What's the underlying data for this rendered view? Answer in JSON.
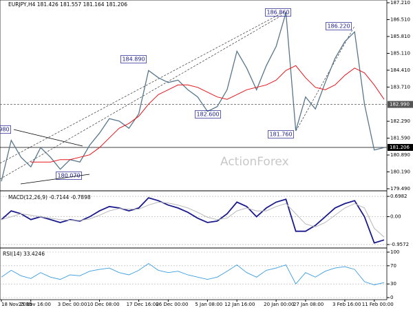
{
  "chart_data": {
    "type": "line",
    "title": "EURJPY,H4 181.426 181.557 181.164 181.206",
    "watermark": "ActionForex",
    "categories": [
      "18 Nov 2025",
      null,
      null,
      "25 Nov 16:00",
      null,
      null,
      null,
      "3 Dec 00:00",
      null,
      null,
      "10 Dec 08:00",
      null,
      null,
      null,
      "17 Dec 16:00",
      null,
      null,
      "26 Dec 00:00",
      null,
      null,
      null,
      "5 Jan 08:00",
      null,
      null,
      "12 Jan 16:00",
      null,
      null,
      null,
      "20 Jan 00:00",
      null,
      null,
      "27 Jan 08:00",
      null,
      null,
      null,
      "3 Feb 16:00",
      null,
      null,
      "11 Feb 00:00",
      null
    ],
    "series": [
      {
        "name": "EURJPY",
        "color": "#56768c",
        "values": [
          179.8,
          181.5,
          180.8,
          180.4,
          181.2,
          180.8,
          180.3,
          180.7,
          180.6,
          181.3,
          181.8,
          182.4,
          182.3,
          182.0,
          182.6,
          184.4,
          184.1,
          183.9,
          184.0,
          183.6,
          183.3,
          182.7,
          182.9,
          183.6,
          185.2,
          184.5,
          183.6,
          184.6,
          185.4,
          186.8,
          181.9,
          183.3,
          182.8,
          183.9,
          184.9,
          185.6,
          186.0,
          183.0,
          181.1,
          181.2
        ]
      },
      {
        "name": "MA",
        "color": "#e8141a",
        "values": [
          null,
          null,
          null,
          180.6,
          180.6,
          180.6,
          180.7,
          180.7,
          180.8,
          180.9,
          181.2,
          181.6,
          182.0,
          182.2,
          182.5,
          183.0,
          183.4,
          183.6,
          183.8,
          183.8,
          183.7,
          183.5,
          183.3,
          183.2,
          183.4,
          183.6,
          183.7,
          183.8,
          184.0,
          184.4,
          184.6,
          184.1,
          183.7,
          183.6,
          183.8,
          184.2,
          184.5,
          184.3,
          183.8,
          183.2
        ]
      }
    ],
    "ylim": [
      179.49,
      187.21
    ],
    "yticks": [
      {
        "value": 187.21,
        "label": "187.210"
      },
      {
        "value": 186.51,
        "label": "186.510"
      },
      {
        "value": 185.81,
        "label": "185.810"
      },
      {
        "value": 185.11,
        "label": "185.110"
      },
      {
        "value": 184.41,
        "label": "184.410"
      },
      {
        "value": 183.71,
        "label": "183.710"
      },
      {
        "value": 182.29,
        "label": "182.290"
      },
      {
        "value": 181.59,
        "label": "181.590"
      },
      {
        "value": 180.89,
        "label": "180.890"
      },
      {
        "value": 180.19,
        "label": "180.190"
      },
      {
        "value": 179.49,
        "label": "179.490"
      }
    ],
    "levels": [
      {
        "value": 182.99,
        "label": "182.990",
        "color": "#555555"
      },
      {
        "value": 181.206,
        "label": "181.206",
        "color": "#000000"
      }
    ],
    "annotations": [
      "186.860",
      "186.220",
      "184.890",
      "182.600",
      "181.760",
      "180.070",
      "980"
    ],
    "macd": {
      "title": "MACD(12,26,9) -0.7144 -0.7898",
      "ylim": [
        -1.076,
        0.818
      ],
      "yticks": [
        0.6982,
        {
          "value": 0,
          "label": "0.00"
        },
        -0.9572
      ],
      "series": [
        {
          "name": "MACD",
          "color": "#1a1a8c",
          "values": [
            -0.1,
            0.2,
            0.1,
            -0.1,
            0.0,
            -0.1,
            -0.2,
            -0.1,
            -0.15,
            0.0,
            0.2,
            0.35,
            0.3,
            0.2,
            0.3,
            0.65,
            0.55,
            0.4,
            0.3,
            0.15,
            -0.05,
            -0.2,
            -0.15,
            0.1,
            0.5,
            0.35,
            0.0,
            0.3,
            0.5,
            0.6,
            -0.5,
            -0.5,
            -0.3,
            0.0,
            0.3,
            0.45,
            0.55,
            0.0,
            -0.9,
            -0.8
          ]
        },
        {
          "name": "Signal",
          "color": "#b8b8b8",
          "values": [
            -0.1,
            0.0,
            0.1,
            0.05,
            0.0,
            -0.05,
            -0.1,
            -0.12,
            -0.13,
            -0.08,
            0.05,
            0.2,
            0.28,
            0.26,
            0.26,
            0.4,
            0.5,
            0.47,
            0.4,
            0.3,
            0.15,
            -0.02,
            -0.1,
            -0.05,
            0.2,
            0.3,
            0.2,
            0.2,
            0.35,
            0.45,
            0.1,
            -0.25,
            -0.35,
            -0.2,
            0.05,
            0.3,
            0.45,
            0.3,
            -0.4,
            -0.7
          ]
        }
      ]
    },
    "rsi": {
      "title": "RSI(14) 33.4246",
      "ylim": [
        0,
        100
      ],
      "yticks": [
        100,
        70,
        30,
        0
      ],
      "series": [
        {
          "name": "RSI",
          "color": "#3a9de0",
          "values": [
            45,
            60,
            48,
            42,
            55,
            45,
            40,
            50,
            48,
            58,
            62,
            65,
            55,
            50,
            60,
            75,
            60,
            55,
            58,
            50,
            45,
            40,
            45,
            58,
            72,
            55,
            45,
            60,
            65,
            72,
            30,
            55,
            45,
            58,
            65,
            68,
            62,
            35,
            28,
            33
          ]
        }
      ]
    }
  }
}
